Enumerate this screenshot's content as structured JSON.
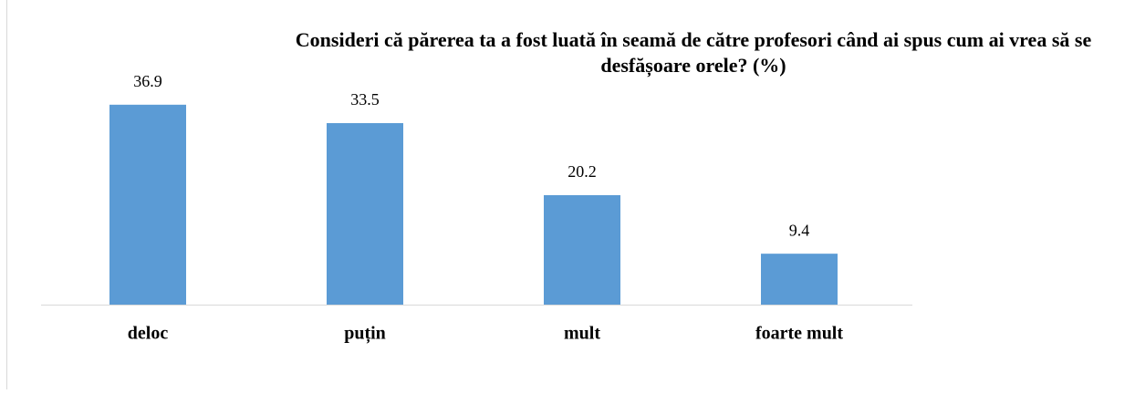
{
  "chart_data": {
    "type": "bar",
    "title": "Consideri că părerea ta a fost luată în seamă de către profesori când ai spus cum ai vrea să se desfășoare orele? (%)",
    "categories": [
      "deloc",
      "puțin",
      "mult",
      "foarte mult"
    ],
    "values": [
      36.9,
      33.5,
      20.2,
      9.4
    ],
    "color": "#5b9bd5"
  }
}
